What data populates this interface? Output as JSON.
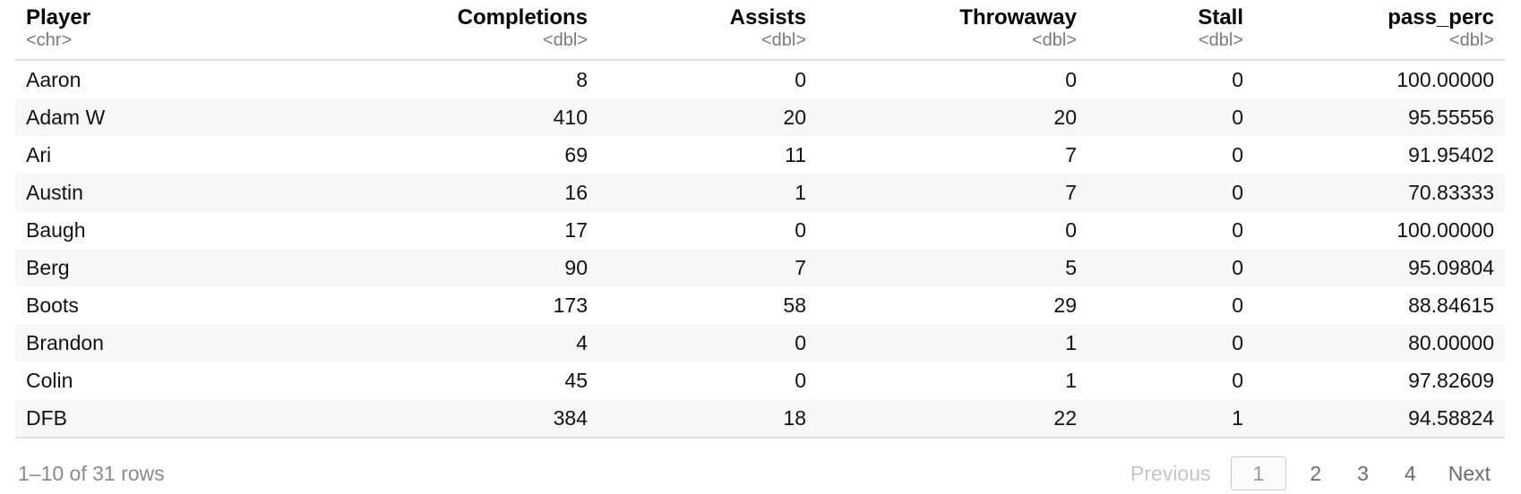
{
  "table": {
    "columns": [
      {
        "name": "Player",
        "type": "<chr>",
        "align": "left"
      },
      {
        "name": "Completions",
        "type": "<dbl>",
        "align": "right"
      },
      {
        "name": "Assists",
        "type": "<dbl>",
        "align": "right"
      },
      {
        "name": "Throwaway",
        "type": "<dbl>",
        "align": "right"
      },
      {
        "name": "Stall",
        "type": "<dbl>",
        "align": "right"
      },
      {
        "name": "pass_perc",
        "type": "<dbl>",
        "align": "right"
      }
    ],
    "rows": [
      [
        "Aaron",
        "8",
        "0",
        "0",
        "0",
        "100.00000"
      ],
      [
        "Adam W",
        "410",
        "20",
        "20",
        "0",
        "95.55556"
      ],
      [
        "Ari",
        "69",
        "11",
        "7",
        "0",
        "91.95402"
      ],
      [
        "Austin",
        "16",
        "1",
        "7",
        "0",
        "70.83333"
      ],
      [
        "Baugh",
        "17",
        "0",
        "0",
        "0",
        "100.00000"
      ],
      [
        "Berg",
        "90",
        "7",
        "5",
        "0",
        "95.09804"
      ],
      [
        "Boots",
        "173",
        "58",
        "29",
        "0",
        "88.84615"
      ],
      [
        "Brandon",
        "4",
        "0",
        "1",
        "0",
        "80.00000"
      ],
      [
        "Colin",
        "45",
        "0",
        "1",
        "0",
        "97.82609"
      ],
      [
        "DFB",
        "384",
        "18",
        "22",
        "1",
        "94.58824"
      ]
    ]
  },
  "footer": {
    "row_info": "1–10 of 31 rows",
    "previous_label": "Previous",
    "next_label": "Next",
    "pages": [
      "1",
      "2",
      "3",
      "4"
    ],
    "current_page": "1"
  }
}
